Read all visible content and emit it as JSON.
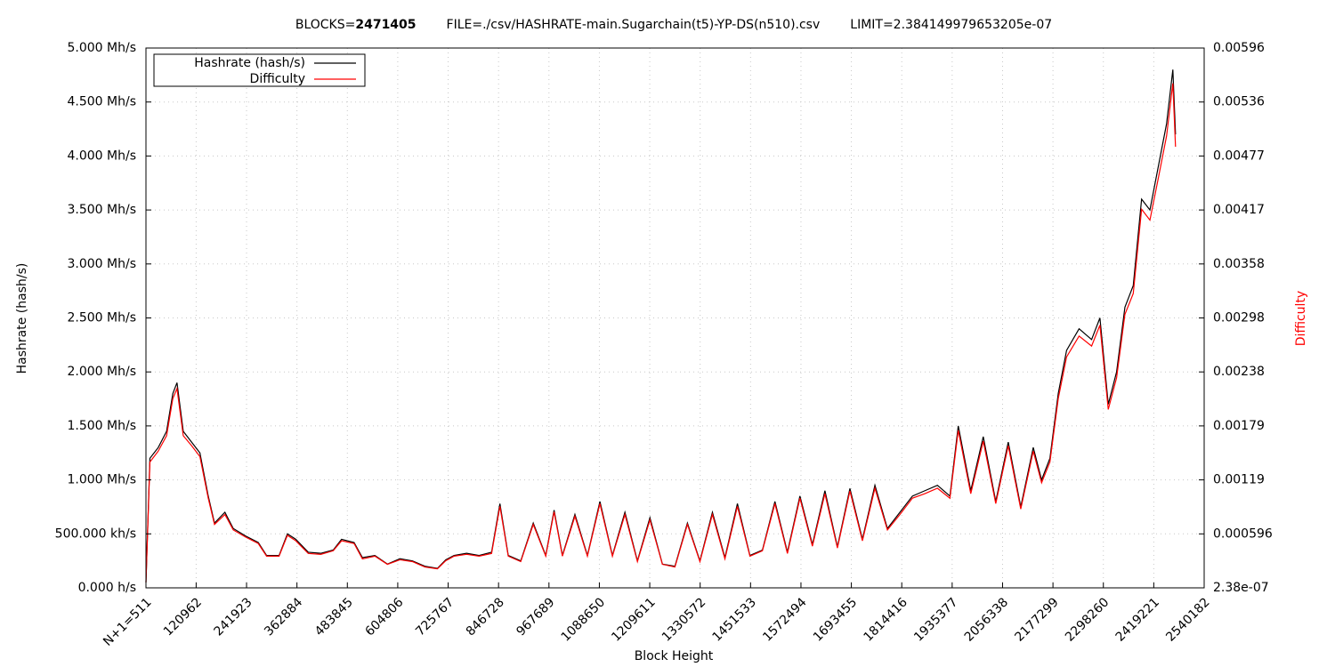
{
  "chart_data": {
    "type": "line",
    "title": {
      "blocks_prefix": "BLOCKS=",
      "blocks": "2471405",
      "file": "FILE=./csv/HASHRATE-main.Sugarchain(t5)-YP-DS(n510).csv",
      "limit": "LIMIT=2.384149979653205e-07"
    },
    "x_label": "Block Height",
    "y_label": "Hashrate (hash/s)",
    "y2_label": "Difficulty",
    "grid": true,
    "legend": "top-left",
    "xlim": [
      511,
      2540182
    ],
    "xticks": [
      {
        "value": 511,
        "label": "N+1=511"
      },
      120962,
      241923,
      362884,
      483845,
      604806,
      725767,
      846728,
      967689,
      1088650,
      1209611,
      1330572,
      1451533,
      1572494,
      1693455,
      1814416,
      1935377,
      2056338,
      2177299,
      2298260,
      2419221,
      2540182
    ],
    "ylim": [
      0,
      5000000
    ],
    "yticks": [
      {
        "value": 0,
        "label": "0.000  h/s"
      },
      {
        "value": 500000,
        "label": "500.000 kh/s"
      },
      {
        "value": 1000000,
        "label": "1.000 Mh/s"
      },
      {
        "value": 1500000,
        "label": "1.500 Mh/s"
      },
      {
        "value": 2000000,
        "label": "2.000 Mh/s"
      },
      {
        "value": 2500000,
        "label": "2.500 Mh/s"
      },
      {
        "value": 3000000,
        "label": "3.000 Mh/s"
      },
      {
        "value": 3500000,
        "label": "3.500 Mh/s"
      },
      {
        "value": 4000000,
        "label": "4.000 Mh/s"
      },
      {
        "value": 4500000,
        "label": "4.500 Mh/s"
      },
      {
        "value": 5000000,
        "label": "5.000 Mh/s"
      }
    ],
    "y2lim": [
      2.38e-07,
      0.00596
    ],
    "y2ticks": [
      {
        "value": 2.38e-07,
        "label": "2.38e-07"
      },
      0.000596,
      {
        "value": 0.0011922,
        "label": "0.00119"
      },
      {
        "value": 0.0017882,
        "label": "0.00179"
      },
      {
        "value": 0.0023841,
        "label": "0.00238"
      },
      {
        "value": 0.0029801,
        "label": "0.00298"
      },
      {
        "value": 0.0035761,
        "label": "0.00358"
      },
      {
        "value": 0.004172,
        "label": "0.00417"
      },
      {
        "value": 0.004768,
        "label": "0.00477"
      },
      {
        "value": 0.005364,
        "label": "0.00536"
      },
      {
        "value": 0.00596,
        "label": "0.00596"
      }
    ],
    "x": [
      511,
      10000,
      30000,
      50000,
      65000,
      75000,
      90000,
      110000,
      130000,
      150000,
      165000,
      190000,
      210000,
      240000,
      270000,
      290000,
      320000,
      340000,
      360000,
      390000,
      420000,
      450000,
      470000,
      500000,
      520000,
      550000,
      580000,
      610000,
      640000,
      670000,
      700000,
      720000,
      740000,
      770000,
      800000,
      830000,
      850000,
      870000,
      900000,
      930000,
      960000,
      980000,
      1000000,
      1030000,
      1060000,
      1090000,
      1120000,
      1150000,
      1180000,
      1210000,
      1240000,
      1270000,
      1300000,
      1330000,
      1360000,
      1390000,
      1420000,
      1450000,
      1480000,
      1510000,
      1540000,
      1570000,
      1600000,
      1630000,
      1660000,
      1690000,
      1720000,
      1750000,
      1780000,
      1810000,
      1840000,
      1870000,
      1900000,
      1930000,
      1950000,
      1980000,
      2010000,
      2040000,
      2070000,
      2100000,
      2130000,
      2150000,
      2170000,
      2190000,
      2210000,
      2240000,
      2270000,
      2290000,
      2310000,
      2330000,
      2350000,
      2370000,
      2390000,
      2410000,
      2430000,
      2450000,
      2465000,
      2471405
    ],
    "series": [
      {
        "name": "Hashrate (hash/s)",
        "color": "#000000",
        "values": [
          50000,
          1200000,
          1300000,
          1450000,
          1800000,
          1900000,
          1450000,
          1350000,
          1250000,
          850000,
          600000,
          700000,
          550000,
          480000,
          420000,
          300000,
          300000,
          500000,
          450000,
          330000,
          320000,
          350000,
          450000,
          420000,
          280000,
          300000,
          220000,
          270000,
          250000,
          200000,
          180000,
          260000,
          300000,
          320000,
          300000,
          330000,
          780000,
          300000,
          250000,
          600000,
          300000,
          720000,
          300000,
          680000,
          300000,
          800000,
          300000,
          700000,
          250000,
          650000,
          220000,
          200000,
          600000,
          250000,
          700000,
          280000,
          780000,
          300000,
          350000,
          800000,
          330000,
          850000,
          400000,
          900000,
          380000,
          920000,
          450000,
          950000,
          550000,
          700000,
          850000,
          900000,
          950000,
          850000,
          1500000,
          900000,
          1400000,
          800000,
          1350000,
          750000,
          1300000,
          1000000,
          1200000,
          1800000,
          2200000,
          2400000,
          2300000,
          2500000,
          1700000,
          2000000,
          2600000,
          2800000,
          3600000,
          3500000,
          3900000,
          4300000,
          4800000,
          4200000
        ]
      },
      {
        "name": "Difficulty",
        "color": "#ff0000",
        "axis": "y2",
        "values": [
          6e-05,
          0.00139,
          0.00151,
          0.00168,
          0.00209,
          0.0022,
          0.00168,
          0.00157,
          0.00145,
          0.00099,
          0.0007,
          0.00081,
          0.00064,
          0.00056,
          0.00049,
          0.00035,
          0.00035,
          0.00058,
          0.00052,
          0.00038,
          0.00037,
          0.00041,
          0.00052,
          0.00049,
          0.00032,
          0.00035,
          0.00026,
          0.00031,
          0.00029,
          0.00023,
          0.00021,
          0.0003,
          0.00035,
          0.00037,
          0.00035,
          0.00038,
          0.0009,
          0.00035,
          0.00029,
          0.0007,
          0.00035,
          0.00084,
          0.00035,
          0.00079,
          0.00035,
          0.00093,
          0.00035,
          0.00081,
          0.00029,
          0.00075,
          0.00026,
          0.00023,
          0.0007,
          0.00029,
          0.00081,
          0.00032,
          0.0009,
          0.00035,
          0.00041,
          0.00093,
          0.00038,
          0.00099,
          0.00046,
          0.00104,
          0.00044,
          0.00107,
          0.00052,
          0.0011,
          0.00064,
          0.00081,
          0.00099,
          0.00104,
          0.0011,
          0.00099,
          0.00174,
          0.00104,
          0.00162,
          0.00093,
          0.00157,
          0.00087,
          0.00151,
          0.00116,
          0.00139,
          0.00209,
          0.00255,
          0.00278,
          0.00267,
          0.0029,
          0.00197,
          0.00232,
          0.00302,
          0.00325,
          0.00418,
          0.00406,
          0.00452,
          0.00499,
          0.00557,
          0.00487
        ]
      }
    ]
  }
}
